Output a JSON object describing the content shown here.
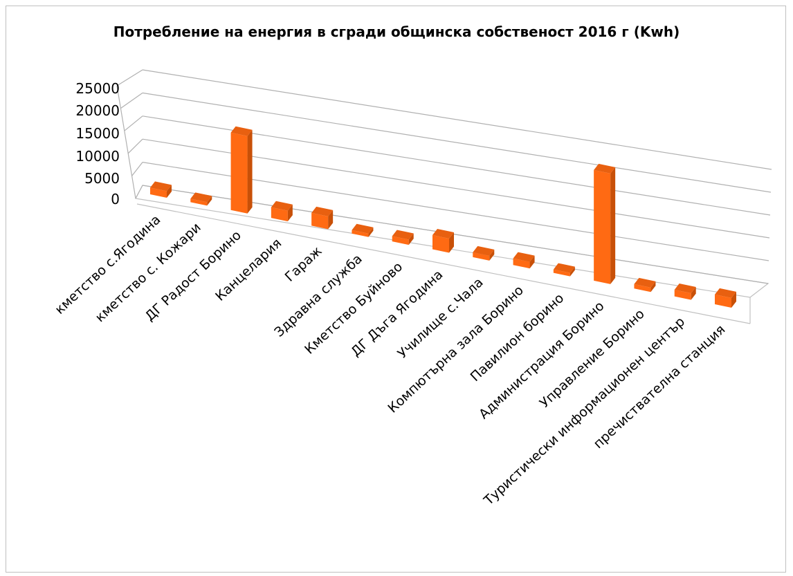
{
  "chart_data": {
    "type": "bar",
    "title": "Потребление на енергия в сгради общинска собственост 2016 г (Kwh)",
    "xlabel": "",
    "ylabel": "",
    "ylim": [
      0,
      25000
    ],
    "y_ticks": [
      "0",
      "5000",
      "10000",
      "15000",
      "20000",
      "25000"
    ],
    "categories": [
      "кметство с.Ягодина",
      "кметство с. Кожари",
      "ДГ Радост Борино",
      "Канцелария",
      "Гараж",
      "Здравна служба",
      "Кметство Буйново",
      "ДГ Дъга Ягодина",
      "Училище с.Чала",
      "Компютърна зала Борино",
      "Павилион борино",
      "Администрация Борино",
      "Управление Борино",
      "Туристически информационен център",
      "пречиствателна станция"
    ],
    "values": [
      1500,
      300,
      17500,
      2400,
      2900,
      500,
      1200,
      3200,
      1100,
      1500,
      500,
      25000,
      1000,
      1500,
      2200
    ],
    "grid": true,
    "legend": "none",
    "bar_color": "#ff6a13"
  }
}
